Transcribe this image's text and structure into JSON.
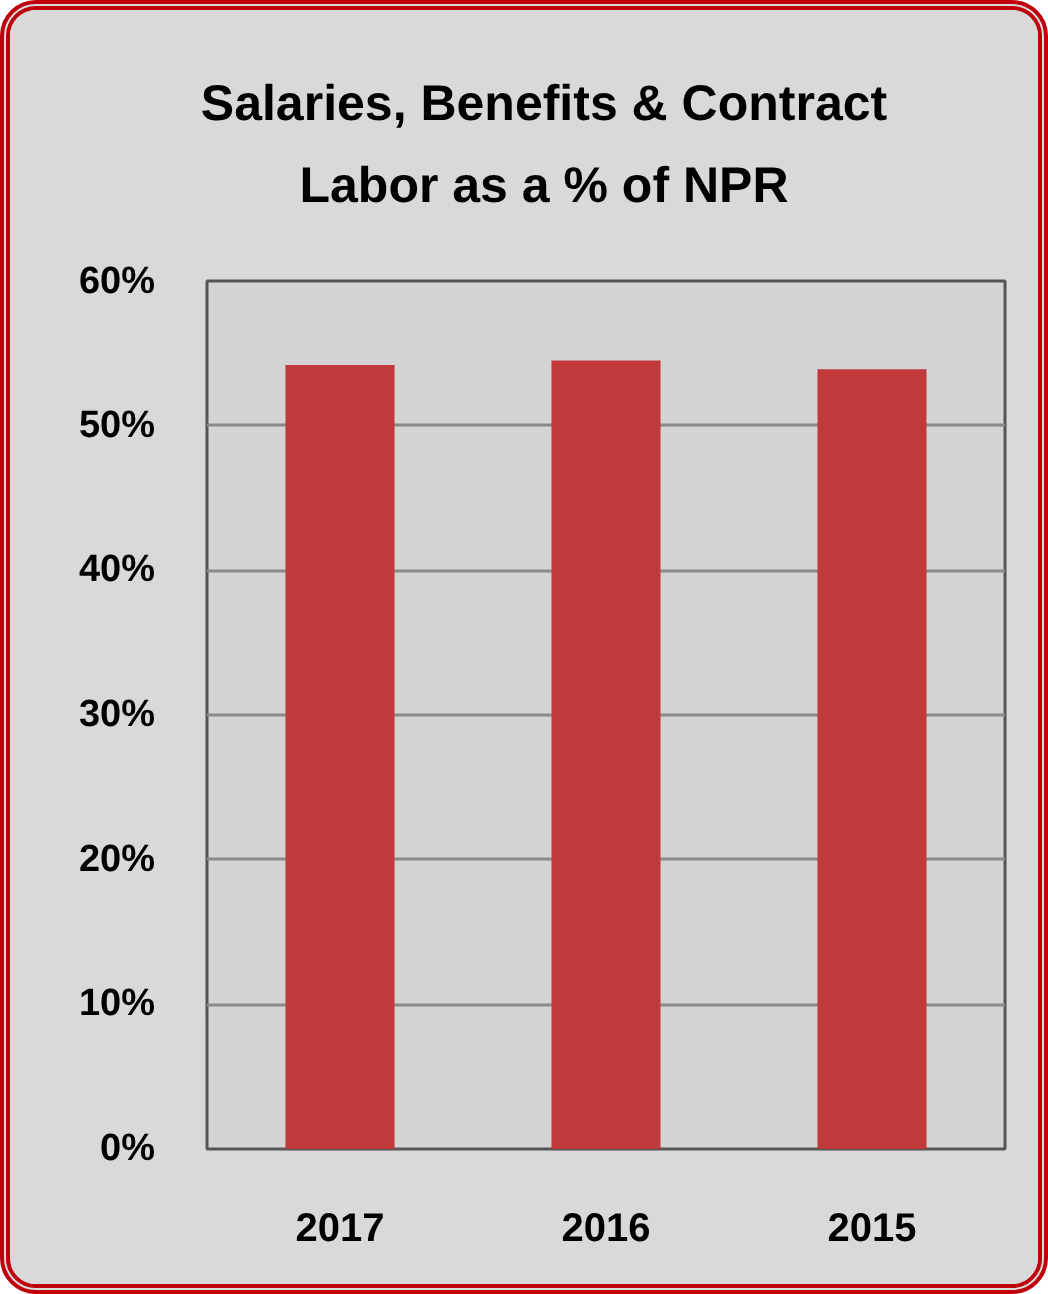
{
  "chart_data": {
    "type": "bar",
    "title": "Salaries, Benefits & Contract Labor as a % of NPR",
    "categories": [
      "2017",
      "2016",
      "2015"
    ],
    "values": [
      54.2,
      54.5,
      53.9
    ],
    "color": "#c0393b",
    "ylim": [
      0,
      60
    ],
    "yticks": [
      {
        "value": 0,
        "label": "0%"
      },
      {
        "value": 10,
        "label": "10%"
      },
      {
        "value": 20,
        "label": "20%"
      },
      {
        "value": 30,
        "label": "30%"
      },
      {
        "value": 40,
        "label": "40%"
      },
      {
        "value": 50,
        "label": "50%"
      },
      {
        "value": 60,
        "label": "60%"
      }
    ],
    "grid": "y"
  }
}
